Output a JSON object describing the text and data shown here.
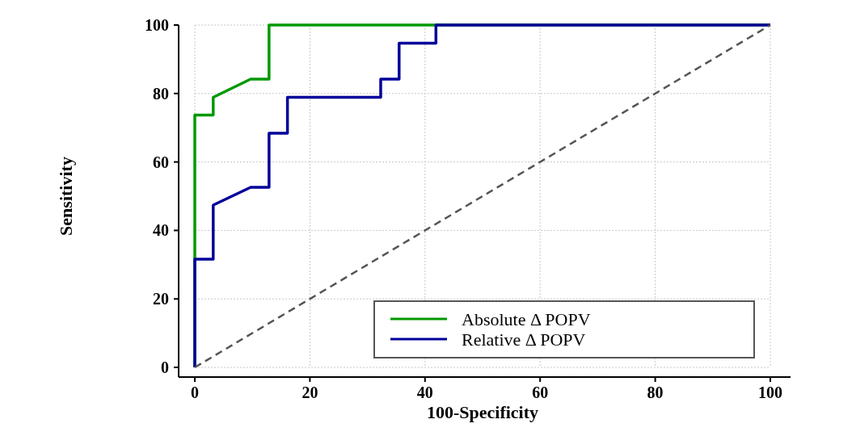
{
  "chart_data": {
    "type": "line",
    "xlabel": "100-Specificity",
    "ylabel": "Sensitivity",
    "xlim": [
      0,
      100
    ],
    "ylim": [
      0,
      100
    ],
    "xticks": [
      0,
      20,
      40,
      60,
      80,
      100
    ],
    "yticks": [
      0,
      20,
      40,
      60,
      80,
      100
    ],
    "grid": true,
    "legend": "bottom right",
    "marker": "none",
    "series": [
      {
        "name": "Absolute Δ POPV",
        "color": "#009900",
        "line_style": "solid",
        "x": [
          0,
          0,
          0,
          3.2,
          3.2,
          9.7,
          12.9,
          12.9,
          100
        ],
        "values": [
          0,
          31.6,
          73.7,
          73.7,
          78.9,
          84.2,
          84.2,
          100,
          100
        ]
      },
      {
        "name": "Relative Δ POPV",
        "color": "#000099",
        "line_style": "solid",
        "x": [
          0,
          0,
          3.2,
          3.2,
          9.7,
          12.9,
          12.9,
          16.1,
          16.1,
          32.3,
          32.3,
          35.5,
          35.5,
          41.9,
          41.9,
          100
        ],
        "values": [
          0,
          31.6,
          31.6,
          47.4,
          52.6,
          52.6,
          68.4,
          68.4,
          78.9,
          78.9,
          84.2,
          84.2,
          94.7,
          94.7,
          100,
          100
        ]
      },
      {
        "color": "#555555",
        "line_style": "dashed",
        "x": [
          0,
          100
        ],
        "values": [
          0,
          100
        ]
      }
    ]
  }
}
